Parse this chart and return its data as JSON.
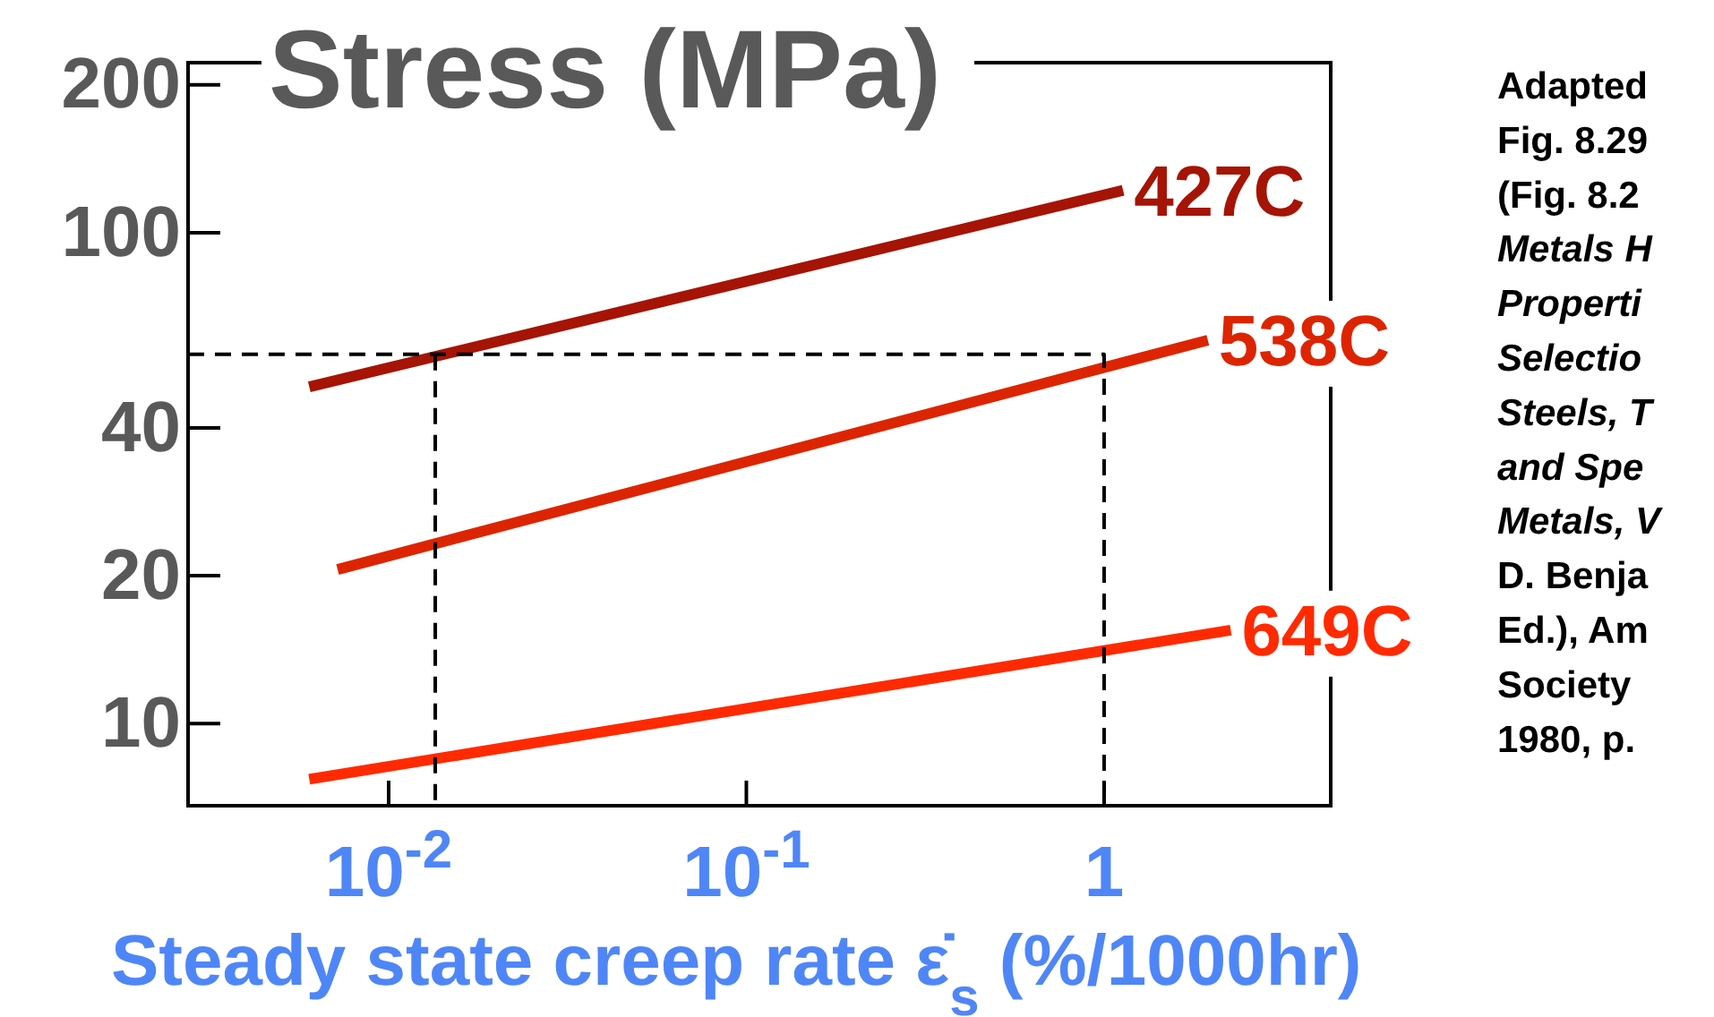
{
  "chart_data": {
    "type": "line",
    "ylabel": "Stress (MPa)",
    "xlabel": "Steady state creep rate ε̇$_{s}$ (%/1000hr)",
    "log": "xy",
    "xlim": [
      0.00275,
      4.3
    ],
    "ylim": [
      6.8,
      222
    ],
    "xticks": [
      {
        "value": 0.01,
        "label": "10$^{-2}$"
      },
      {
        "value": 0.1,
        "label": "10$^{-1}$"
      },
      1
    ],
    "yticks": [
      10,
      20,
      40,
      100,
      200
    ],
    "grid": false,
    "line_style": "solid",
    "series": [
      {
        "name": "427C",
        "color": "#a51405",
        "x": [
          0.006,
          1.13
        ],
        "values": [
          48.5,
          122
        ]
      },
      {
        "name": "538C",
        "color": "#dc2500",
        "x": [
          0.0072,
          1.95
        ],
        "values": [
          20.6,
          60.4
        ]
      },
      {
        "name": "649C",
        "color": "#ff2a00",
        "x": [
          0.006,
          2.26
        ],
        "values": [
          7.7,
          15.5
        ]
      },
      {
        "color": "#000000",
        "line_style": "dashed",
        "x": [
          0.00275,
          1,
          1
        ],
        "values": [
          56.5,
          56.5,
          6.8
        ]
      },
      {
        "color": "#000000",
        "line_style": "dashed",
        "x": [
          0.0135,
          0.0135
        ],
        "values": [
          56.5,
          6.8
        ]
      }
    ],
    "annotations": [
      "Adapted\nFig. 8.29\n(Fig. 8.2\nMetals H\nProperti\nSelectio\nSteels, T\nand Spe\nMetals, V\nD. Benja\nEd.), Am\nSociety\n1980, p."
    ]
  }
}
